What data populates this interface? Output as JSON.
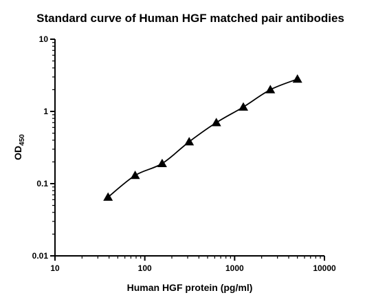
{
  "chart_data": {
    "type": "scatter",
    "title": "Standard curve of Human HGF matched pair antibodies",
    "xlabel": "Human HGF protein (pg/ml)",
    "ylabel": {
      "main": "OD",
      "subscript": "450"
    },
    "xscale": "log",
    "yscale": "log",
    "xlim": [
      10,
      10000
    ],
    "ylim": [
      0.01,
      10
    ],
    "xticks": [
      "10",
      "100",
      "1000",
      "10000"
    ],
    "yticks": [
      "0.01",
      "0.1",
      "1",
      "10"
    ],
    "grid": false,
    "legend": "none",
    "marker": "triangle",
    "fit_line": true,
    "series": [
      {
        "x": [
          39,
          78,
          156,
          312,
          625,
          1250,
          2500,
          5000
        ],
        "y": [
          0.065,
          0.13,
          0.19,
          0.38,
          0.7,
          1.15,
          2.0,
          2.8
        ]
      }
    ],
    "colors": {
      "marker": "#000000",
      "line": "#000000",
      "axis": "#000000"
    }
  }
}
